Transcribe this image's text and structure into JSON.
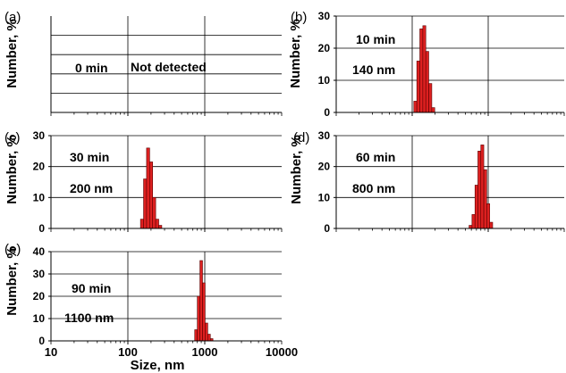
{
  "figure": {
    "xlabel": "Size, nm",
    "ylabel": "Number, %",
    "x_tick_labels": [
      "10",
      "100",
      "1000",
      "10000"
    ],
    "colors": {
      "bar_fill": "#dd2020",
      "bar_stroke": "#5a0000",
      "axis": "#000000",
      "grid": "#000000"
    }
  },
  "chart_data": [
    {
      "type": "bar",
      "panel": "(a)",
      "time": "0 min",
      "size": "",
      "note": "Not detected",
      "xscale": "log",
      "xlim": [
        10,
        10000
      ],
      "ylim": [
        0,
        30
      ],
      "yticks": [],
      "grid": true,
      "bins": []
    },
    {
      "type": "bar",
      "panel": "(b)",
      "time": "10 min",
      "size": "140 nm",
      "note": "",
      "xscale": "log",
      "xlim": [
        10,
        10000
      ],
      "ylim": [
        0,
        30
      ],
      "yticks": [
        0,
        10,
        20,
        30
      ],
      "grid": true,
      "bins": [
        {
          "x0": 105,
          "x1": 115,
          "y": 3.5
        },
        {
          "x0": 115,
          "x1": 126,
          "y": 16
        },
        {
          "x0": 126,
          "x1": 138,
          "y": 26
        },
        {
          "x0": 138,
          "x1": 151,
          "y": 27
        },
        {
          "x0": 151,
          "x1": 165,
          "y": 19
        },
        {
          "x0": 165,
          "x1": 181,
          "y": 9
        },
        {
          "x0": 181,
          "x1": 198,
          "y": 1.5
        }
      ]
    },
    {
      "type": "bar",
      "panel": "(c)",
      "time": "30 min",
      "size": "200 nm",
      "note": "",
      "xscale": "log",
      "xlim": [
        10,
        10000
      ],
      "ylim": [
        0,
        30
      ],
      "yticks": [
        0,
        10,
        20,
        30
      ],
      "grid": true,
      "bins": [
        {
          "x0": 146,
          "x1": 160,
          "y": 3
        },
        {
          "x0": 160,
          "x1": 175,
          "y": 16
        },
        {
          "x0": 175,
          "x1": 192,
          "y": 26
        },
        {
          "x0": 192,
          "x1": 210,
          "y": 21.5
        },
        {
          "x0": 210,
          "x1": 230,
          "y": 10
        },
        {
          "x0": 230,
          "x1": 252,
          "y": 3
        },
        {
          "x0": 252,
          "x1": 276,
          "y": 1
        }
      ]
    },
    {
      "type": "bar",
      "panel": "(d)",
      "time": "60 min",
      "size": "800 nm",
      "note": "",
      "xscale": "log",
      "xlim": [
        10,
        10000
      ],
      "ylim": [
        0,
        30
      ],
      "yticks": [
        0,
        10,
        20,
        30
      ],
      "grid": true,
      "bins": [
        {
          "x0": 560,
          "x1": 612,
          "y": 1
        },
        {
          "x0": 612,
          "x1": 670,
          "y": 4.5
        },
        {
          "x0": 670,
          "x1": 732,
          "y": 14
        },
        {
          "x0": 732,
          "x1": 800,
          "y": 25
        },
        {
          "x0": 800,
          "x1": 875,
          "y": 27
        },
        {
          "x0": 875,
          "x1": 957,
          "y": 19
        },
        {
          "x0": 957,
          "x1": 1046,
          "y": 8
        },
        {
          "x0": 1046,
          "x1": 1144,
          "y": 2
        }
      ]
    },
    {
      "type": "bar",
      "panel": "(e)",
      "time": "90 min",
      "size": "1100 nm",
      "note": "",
      "xscale": "log",
      "xlim": [
        10,
        10000
      ],
      "ylim": [
        0,
        40
      ],
      "yticks": [
        0,
        10,
        20,
        30,
        40
      ],
      "grid": true,
      "bins": [
        {
          "x0": 740,
          "x1": 800,
          "y": 5
        },
        {
          "x0": 800,
          "x1": 865,
          "y": 20
        },
        {
          "x0": 865,
          "x1": 935,
          "y": 36
        },
        {
          "x0": 935,
          "x1": 1011,
          "y": 26
        },
        {
          "x0": 1011,
          "x1": 1093,
          "y": 8
        },
        {
          "x0": 1093,
          "x1": 1182,
          "y": 3
        },
        {
          "x0": 1182,
          "x1": 1277,
          "y": 1
        }
      ]
    }
  ]
}
